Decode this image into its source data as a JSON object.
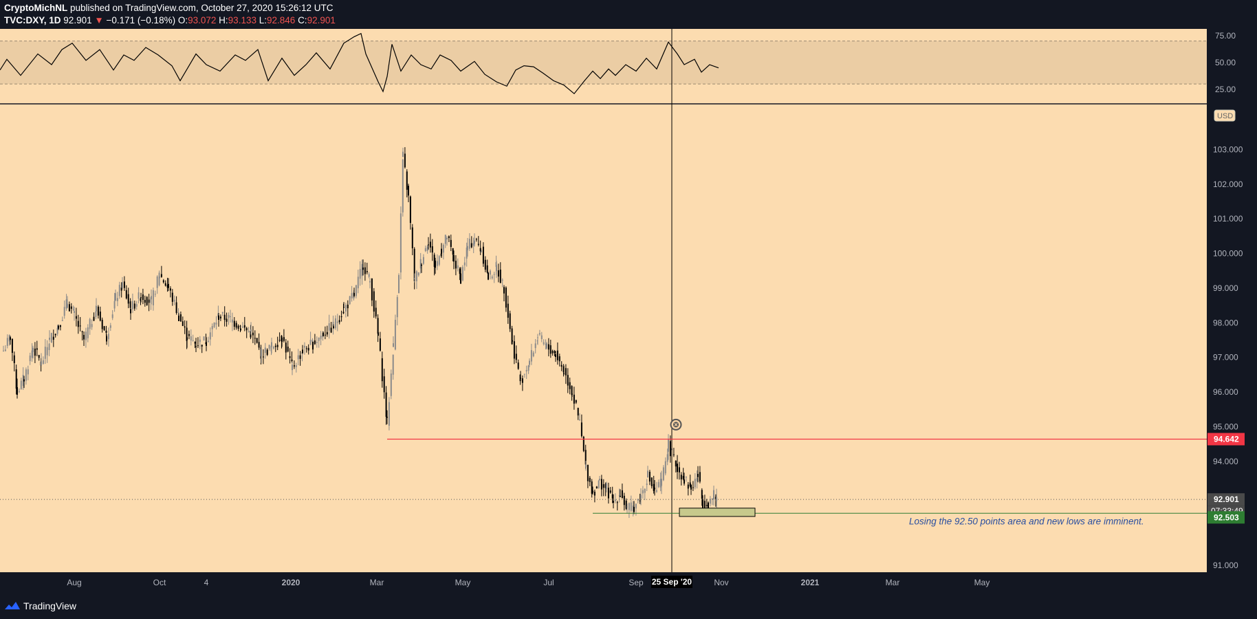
{
  "header": {
    "publisher": "CryptoMichNL",
    "published_text": " published on TradingView.com, October 27, 2020 15:26:12 UTC",
    "symbol": "TVC:DXY, 1D",
    "last": "92.901",
    "change": "−0.171 (−0.18%)",
    "open_label": "O:",
    "open": "93.072",
    "high_label": "H:",
    "high": "93.133",
    "low_label": "L:",
    "low": "92.846",
    "close_label": "C:",
    "close": "92.901"
  },
  "footer": {
    "brand": "TradingView"
  },
  "colors": {
    "background": "#fcdcb0",
    "rsi_band": "#ebcda4",
    "resistance": "#f23645",
    "support": "#2e7d32",
    "zone_fill": "#c7c98c",
    "axis_bg": "#131722",
    "up_candle": "#8a8a8a",
    "down_candle": "#000000",
    "annotation_text": "#2a4fa0"
  },
  "chart_data": [
    {
      "type": "line",
      "indicator": "RSI",
      "ylim": [
        16,
        80
      ],
      "band": [
        30,
        70
      ],
      "y_ticks": [
        "75.00",
        "50.00",
        "25.00"
      ],
      "y_tick_values": [
        75,
        50,
        25
      ],
      "x": [
        0,
        10,
        30,
        55,
        75,
        90,
        105,
        125,
        145,
        165,
        180,
        195,
        212,
        230,
        250,
        262,
        285,
        300,
        320,
        342,
        357,
        375,
        390,
        410,
        428,
        445,
        460,
        480,
        500,
        515,
        525,
        532,
        541,
        550,
        557,
        563,
        570,
        583,
        598,
        612,
        627,
        640,
        656,
        670,
        690,
        705,
        722,
        737,
        750,
        762,
        776,
        790,
        805,
        820,
        835,
        850,
        862,
        873,
        885,
        895,
        910,
        925,
        940,
        955,
        972,
        985,
        995,
        1010,
        1020,
        1032,
        1045
      ],
      "values": [
        43,
        53,
        38,
        58,
        48,
        62,
        68,
        52,
        62,
        43,
        57,
        52,
        64,
        57,
        47,
        33,
        58,
        48,
        42,
        57,
        52,
        62,
        33,
        54,
        38,
        48,
        59,
        44,
        68,
        74,
        77,
        58,
        45,
        32,
        23,
        37,
        67,
        42,
        57,
        48,
        44,
        57,
        52,
        42,
        51,
        39,
        32,
        28,
        43,
        47,
        46,
        40,
        33,
        29,
        21,
        33,
        42,
        35,
        44,
        38,
        48,
        42,
        54,
        44,
        69,
        58,
        48,
        53,
        41,
        48,
        45
      ]
    },
    {
      "type": "candlestick",
      "title": "",
      "currency_badge": "USD",
      "ylim": [
        90.8,
        104.3
      ],
      "y_ticks": [
        "103.000",
        "102.000",
        "101.000",
        "100.000",
        "99.000",
        "98.000",
        "97.000",
        "96.000",
        "95.000",
        "94.000",
        "91.000"
      ],
      "y_tick_values": [
        103,
        102,
        101,
        100,
        99,
        98,
        97,
        96,
        95,
        94,
        91
      ],
      "x_tick_labels": [
        "Aug",
        "Oct",
        "4",
        "2020",
        "Mar",
        "May",
        "Jul",
        "Sep",
        "Nov",
        "2021",
        "Mar",
        "May"
      ],
      "x_tick_positions": [
        108,
        232,
        300,
        423,
        548,
        673,
        798,
        925,
        1049,
        1178,
        1298,
        1428
      ],
      "crosshair": {
        "x": 977,
        "label": "25 Sep '20"
      },
      "series_path": {
        "x": [
          5,
          15,
          25,
          35,
          48,
          60,
          72,
          85,
          98,
          108,
          122,
          140,
          155,
          168,
          178,
          190,
          205,
          220,
          232,
          245,
          260,
          272,
          285,
          300,
          318,
          335,
          350,
          365,
          380,
          395,
          410,
          425,
          440,
          455,
          470,
          485,
          500,
          515,
          528,
          538,
          550,
          563,
          572,
          580,
          586,
          594,
          603,
          613,
          623,
          633,
          642,
          650,
          660,
          670,
          680,
          690,
          700,
          710,
          722,
          733,
          745,
          757,
          770,
          782,
          795,
          808,
          820,
          832,
          843,
          852,
          862,
          872,
          882,
          892,
          902,
          912,
          922,
          932,
          942,
          952,
          962,
          972,
          977,
          985,
          995,
          1005,
          1015,
          1022,
          1030,
          1038,
          1042
        ],
        "close": [
          97.2,
          97.6,
          96.0,
          96.4,
          97.3,
          96.8,
          97.5,
          97.9,
          98.6,
          98.2,
          97.5,
          98.4,
          97.6,
          98.7,
          99.1,
          98.4,
          98.8,
          98.6,
          99.4,
          99.0,
          98.2,
          97.6,
          97.4,
          97.5,
          98.2,
          98.1,
          97.9,
          97.7,
          97.1,
          97.3,
          97.6,
          96.7,
          97.2,
          97.4,
          97.7,
          97.9,
          98.4,
          98.8,
          99.7,
          99.2,
          97.6,
          95.1,
          97.3,
          99.5,
          102.8,
          101.6,
          99.2,
          99.8,
          100.4,
          99.6,
          100.1,
          100.5,
          99.8,
          99.3,
          100.2,
          100.4,
          100.1,
          99.3,
          99.6,
          99.0,
          97.4,
          96.3,
          96.9,
          97.6,
          97.3,
          97.1,
          96.6,
          96.0,
          95.1,
          93.8,
          93.1,
          93.4,
          93.2,
          92.8,
          93.1,
          92.6,
          92.7,
          93.0,
          93.6,
          93.1,
          93.4,
          94.5,
          94.2,
          93.8,
          93.5,
          93.2,
          93.6,
          92.8,
          92.8,
          93.0,
          92.9
        ]
      },
      "resistance": {
        "value": 94.642,
        "label": "94.642",
        "x_start": 563
      },
      "support": {
        "value": 92.503,
        "label": "92.503",
        "x_start": 862
      },
      "last_price": {
        "value": 92.901,
        "label": "92.901",
        "countdown": "07:33:49"
      },
      "zone": {
        "x_start": 988,
        "x_end": 1098,
        "low": 92.41,
        "high": 92.65
      },
      "marker_x": 983,
      "marker_y": 95.06,
      "annotation": "Losing the 92.50 points area and new lows are imminent."
    }
  ]
}
